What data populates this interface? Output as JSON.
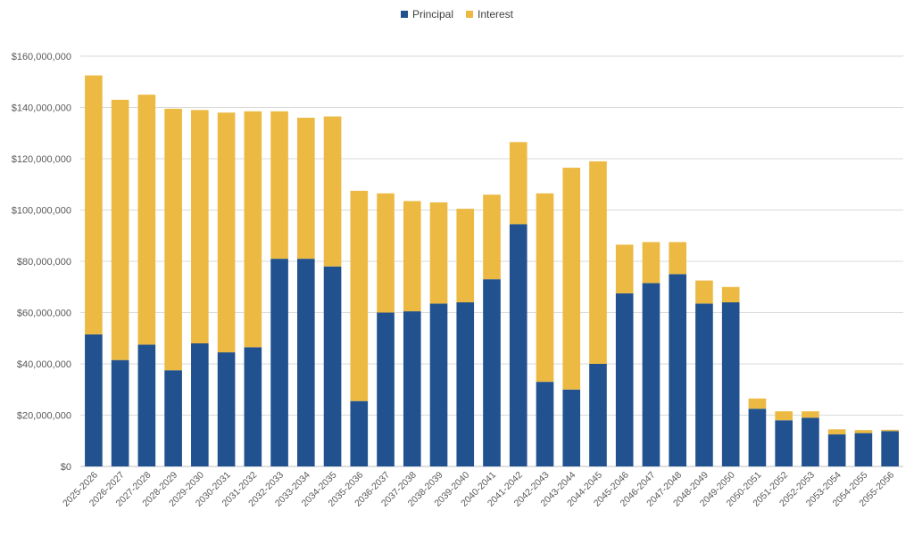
{
  "chart_data": {
    "type": "bar",
    "stacked": true,
    "categories": [
      "2025-2026",
      "2026-2027",
      "2027-2028",
      "2028-2029",
      "2029-2030",
      "2030-2031",
      "2031-2032",
      "2032-2033",
      "2033-2034",
      "2034-2035",
      "2035-2036",
      "2036-2037",
      "2037-2038",
      "2038-2039",
      "2039-2040",
      "2040-2041",
      "2041-2042",
      "2042-2043",
      "2043-2044",
      "2044-2045",
      "2045-2046",
      "2046-2047",
      "2047-2048",
      "2048-2049",
      "2049-2050",
      "2050-2051",
      "2051-2052",
      "2052-2053",
      "2053-2054",
      "2054-2055",
      "2055-2056"
    ],
    "series": [
      {
        "name": "Principal",
        "color": "#21528f",
        "values": [
          51500000,
          41500000,
          47500000,
          37500000,
          48000000,
          44500000,
          46500000,
          81000000,
          81000000,
          78000000,
          25500000,
          60000000,
          60500000,
          63500000,
          64000000,
          73000000,
          94500000,
          33000000,
          30000000,
          40000000,
          67500000,
          71500000,
          75000000,
          63500000,
          64000000,
          22500000,
          18000000,
          19000000,
          12500000,
          13000000,
          13800000
        ]
      },
      {
        "name": "Interest",
        "color": "#ecba43",
        "values": [
          101000000,
          101500000,
          97500000,
          102000000,
          91000000,
          93500000,
          92000000,
          57500000,
          55000000,
          58500000,
          82000000,
          46500000,
          43000000,
          39500000,
          36500000,
          33000000,
          32000000,
          73500000,
          86500000,
          79000000,
          19000000,
          16000000,
          12500000,
          9000000,
          6000000,
          4000000,
          3500000,
          2500000,
          2000000,
          1200000,
          500000
        ]
      }
    ],
    "y_axis": {
      "min": 0,
      "max": 160000000,
      "ticks": [
        0,
        20000000,
        40000000,
        60000000,
        80000000,
        100000000,
        120000000,
        140000000,
        160000000
      ],
      "tick_labels": [
        "$0",
        "$20,000,000",
        "$40,000,000",
        "$60,000,000",
        "$80,000,000",
        "$100,000,000",
        "$120,000,000",
        "$140,000,000",
        "$160,000,000"
      ]
    },
    "grid": true,
    "legend_position": "top-center",
    "title": "",
    "xlabel": "",
    "ylabel": ""
  }
}
